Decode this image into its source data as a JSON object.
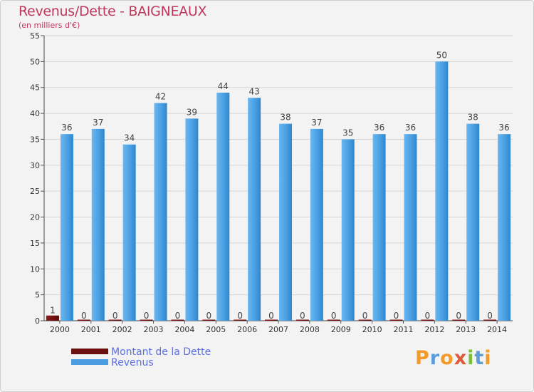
{
  "title": "Revenus/Dette - BAIGNEAUX",
  "subtitle": "(en milliers d'€)",
  "logo": {
    "text": "Proxiti",
    "colors": [
      "#f29b2a",
      "#5a9bd8",
      "#f29b2a",
      "#e05a3a",
      "#7cbd3a",
      "#5a9bd8",
      "#f29b2a"
    ]
  },
  "chart_data": {
    "type": "bar",
    "title": "Revenus/Dette - BAIGNEAUX",
    "ylabel": "(en milliers d'€)",
    "xlabel": "",
    "ylim": [
      0,
      55
    ],
    "yticks": [
      0,
      5,
      10,
      15,
      20,
      25,
      30,
      35,
      40,
      45,
      50,
      55
    ],
    "grid": true,
    "legend_position": "bottom-left",
    "categories": [
      "2000",
      "2001",
      "2002",
      "2003",
      "2004",
      "2005",
      "2006",
      "2007",
      "2008",
      "2009",
      "2010",
      "2011",
      "2012",
      "2013",
      "2014"
    ],
    "series": [
      {
        "name": "Montant de la Dette",
        "color": "#7a1010",
        "values": [
          1,
          0,
          0,
          0,
          0,
          0,
          0,
          0,
          0,
          0,
          0,
          0,
          0,
          0,
          0
        ]
      },
      {
        "name": "Revenus",
        "color": "#4a9de0",
        "values": [
          36,
          37,
          34,
          42,
          39,
          44,
          43,
          38,
          37,
          35,
          36,
          36,
          50,
          38,
          36
        ]
      }
    ]
  }
}
